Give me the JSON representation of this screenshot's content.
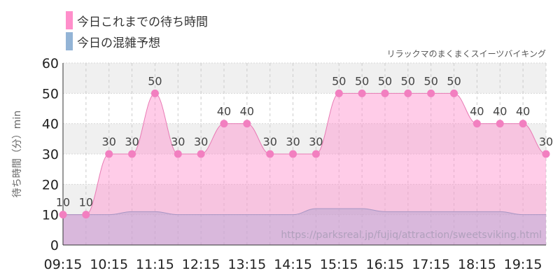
{
  "chart_data": {
    "type": "area",
    "subtitle": "リラックマのまくまくスイーツバイキング",
    "ylabel": "待ち時間（分）min",
    "xlabel": "",
    "ylim": [
      0,
      60
    ],
    "yticks": [
      0,
      10,
      20,
      30,
      40,
      50,
      60
    ],
    "grid": true,
    "legend_position": "top-left",
    "x_tick_labels": [
      "09:15",
      "10:15",
      "11:15",
      "12:15",
      "13:15",
      "14:15",
      "15:15",
      "16:15",
      "17:15",
      "18:15",
      "19:15"
    ],
    "x": [
      "09:15",
      "09:45",
      "10:15",
      "10:45",
      "11:15",
      "11:45",
      "12:15",
      "12:45",
      "13:15",
      "13:45",
      "14:15",
      "14:45",
      "15:15",
      "15:45",
      "16:15",
      "16:45",
      "17:15",
      "17:45",
      "18:15",
      "18:45",
      "19:15",
      "19:45"
    ],
    "series": [
      {
        "name": "今日これまでの待ち時間",
        "color": "#ff8fcb",
        "values": [
          10,
          10,
          30,
          30,
          50,
          30,
          30,
          40,
          40,
          30,
          30,
          30,
          50,
          50,
          50,
          50,
          50,
          50,
          40,
          40,
          40,
          30
        ]
      },
      {
        "name": "今日の混雑予想",
        "color": "#93b4d6",
        "values": [
          10,
          10,
          10,
          11,
          11,
          10,
          10,
          10,
          10,
          10,
          10,
          12,
          12,
          12,
          11,
          11,
          11,
          11,
          11,
          11,
          10,
          10
        ]
      }
    ],
    "watermark": "https://parksreal.jp/fujiq/attraction/sweetsviking.html"
  }
}
